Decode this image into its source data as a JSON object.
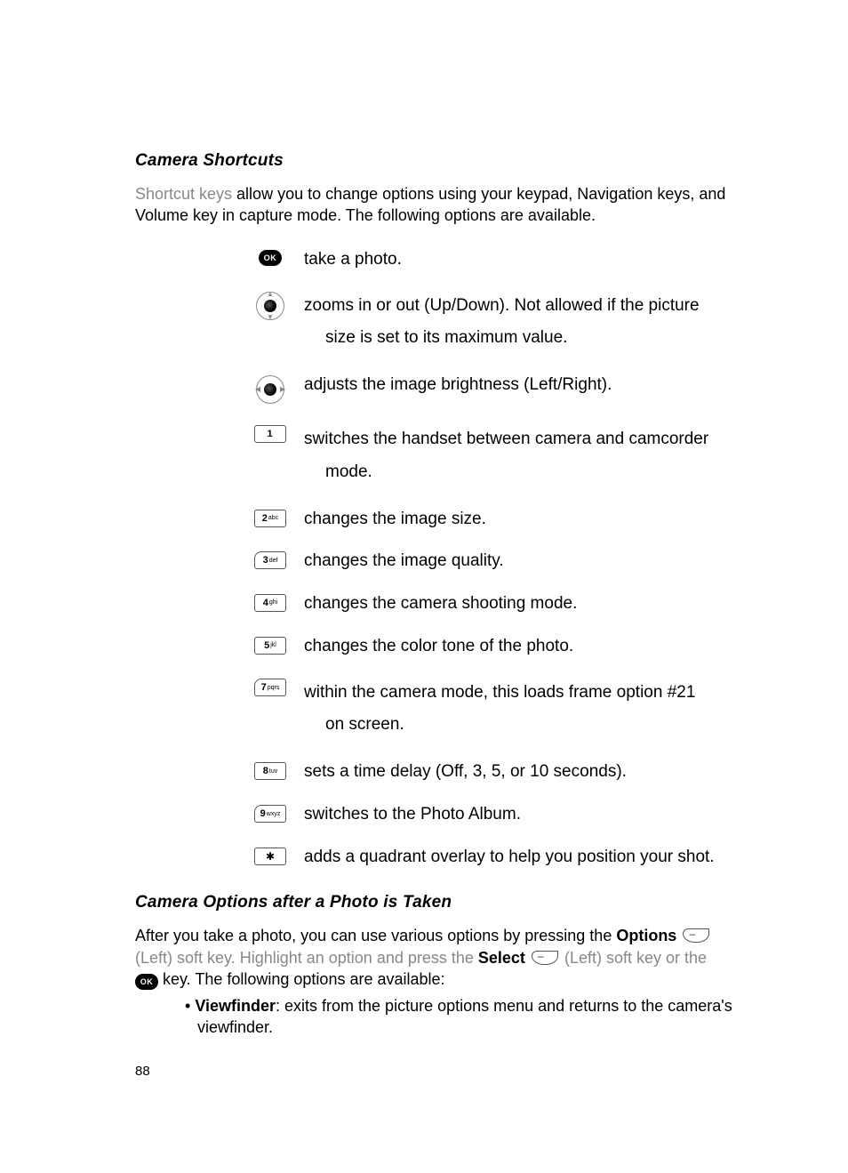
{
  "section1": {
    "title": "Camera Shortcuts",
    "intro_light": "Shortcut keys",
    "intro_rest": " allow you to change options using your keypad, Navigation keys, and Volume key in capture mode. The following options are available."
  },
  "shortcuts": [
    {
      "icon": "ok",
      "text": "take a photo."
    },
    {
      "icon": "nav-ud",
      "text": "zooms in or out (Up/Down). Not allowed if the picture",
      "text2": "size is set to its maximum value."
    },
    {
      "icon": "nav-lr",
      "text": "adjusts the image brightness (Left/Right)."
    },
    {
      "icon": "key-1",
      "text": "switches the handset between camera and camcorder",
      "text2": "mode."
    },
    {
      "icon": "key-2",
      "text": "changes the image size."
    },
    {
      "icon": "key-3",
      "text": "changes the image quality."
    },
    {
      "icon": "key-4",
      "text": "changes the camera shooting mode."
    },
    {
      "icon": "key-5",
      "text": "changes the color tone of the photo."
    },
    {
      "icon": "key-7",
      "text": "within the camera mode, this loads frame option #21",
      "text2": "on screen."
    },
    {
      "icon": "key-8",
      "text": "sets a time delay (Off, 3, 5, or 10 seconds)."
    },
    {
      "icon": "key-9",
      "text": "switches to the Photo Album."
    },
    {
      "icon": "key-star",
      "text": "adds a quadrant overlay to help you position your shot."
    }
  ],
  "key_labels": {
    "key-1": {
      "num": "1",
      "sub": ""
    },
    "key-2": {
      "num": "2",
      "sub": "abc"
    },
    "key-3": {
      "num": "3",
      "sub": "def"
    },
    "key-4": {
      "num": "4",
      "sub": "ghi"
    },
    "key-5": {
      "num": "5",
      "sub": "jkl"
    },
    "key-7": {
      "num": "7",
      "sub": "pqrs"
    },
    "key-8": {
      "num": "8",
      "sub": "tuv"
    },
    "key-9": {
      "num": "9",
      "sub": "wxyz"
    },
    "key-star": {
      "num": "✱",
      "sub": ""
    }
  },
  "section2": {
    "title": "Camera Options after a Photo is Taken",
    "line1_a": "After you take a photo, you can use various options by pressing the ",
    "options_bold": "Options",
    "line1_b": " ",
    "line2_a": "(Left)",
    "line2_b": " soft key. Highlight an option and press the ",
    "select_bold": "Select",
    "line2_c": " ",
    "line2_d": " (Left)",
    "line2_e": " soft key or the ",
    "line3": " key. The following options are available:"
  },
  "bullets": [
    {
      "bold": "Viewfinder",
      "rest": ": exits from the picture options menu and returns to the camera's viewfinder."
    }
  ],
  "page_number": "88",
  "colors": {
    "text": "#000000",
    "light_text": "#888888",
    "bg": "#ffffff"
  }
}
